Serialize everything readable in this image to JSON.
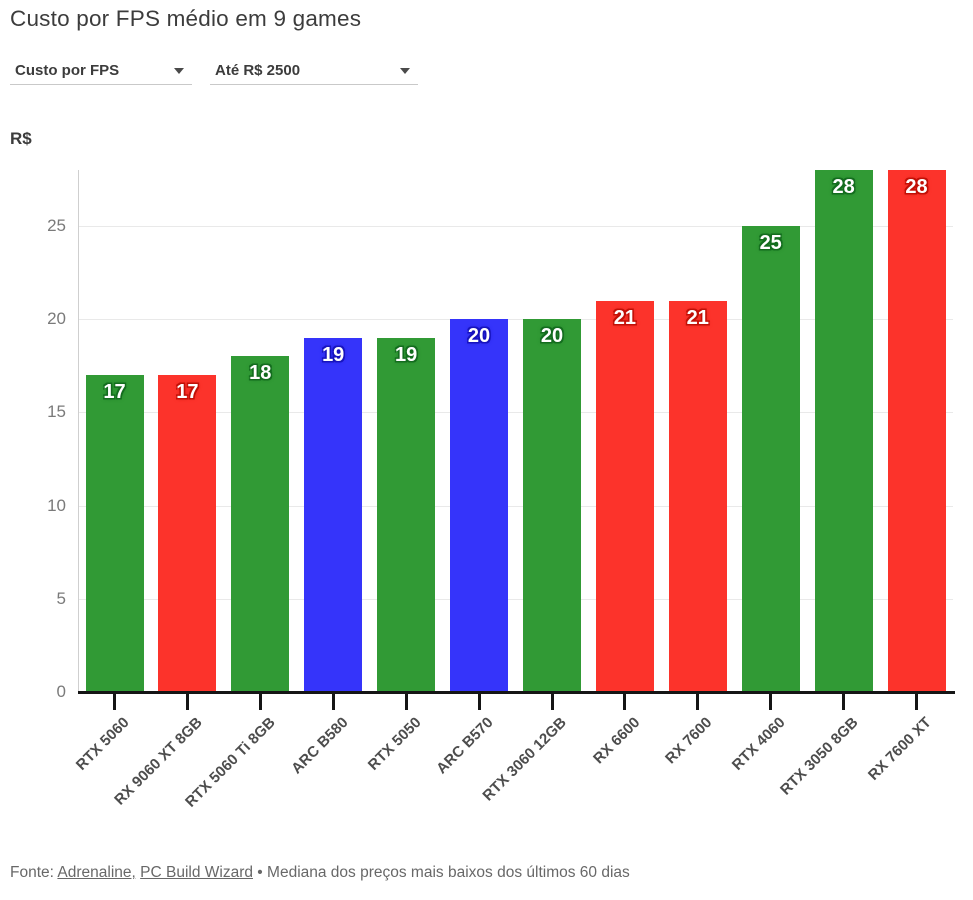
{
  "header": {
    "title": "Custo por FPS médio em 9 games",
    "filters": [
      {
        "label": "Custo por FPS"
      },
      {
        "label": "Até R$ 2500"
      }
    ]
  },
  "chart_data": {
    "type": "bar",
    "title": "Custo por FPS médio em 9 games",
    "xlabel": "",
    "ylabel": "R$",
    "ylim": [
      0,
      28
    ],
    "yticks": [
      0,
      5,
      10,
      15,
      20,
      25
    ],
    "grid": true,
    "legend": "none",
    "categories": [
      "RTX 5060",
      "RX 9060 XT 8GB",
      "RTX 5060 Ti 8GB",
      "ARC B580",
      "RTX 5050",
      "ARC B570",
      "RTX 3060 12GB",
      "RX 6600",
      "RX 7600",
      "RTX 4060",
      "RTX 3050 8GB",
      "RX 7600 XT"
    ],
    "values": [
      17,
      17,
      18,
      19,
      19,
      20,
      20,
      21,
      21,
      25,
      28,
      28
    ],
    "vendors": [
      "nvidia",
      "amd",
      "nvidia",
      "intel",
      "nvidia",
      "intel",
      "nvidia",
      "amd",
      "amd",
      "nvidia",
      "nvidia",
      "amd"
    ],
    "colors": {
      "nvidia": "#319a35",
      "amd": "#fc332b",
      "intel": "#3534fa"
    },
    "label_halo": {
      "nvidia": "#136c1e",
      "amd": "#c11007",
      "intel": "#1713bd"
    }
  },
  "footer": {
    "prefix": "Fonte:",
    "links": [
      {
        "label": "Adrenaline,"
      },
      {
        "label": "PC Build Wizard"
      }
    ],
    "separator": "•",
    "note": "Mediana dos preços mais baixos dos últimos 60 dias"
  }
}
